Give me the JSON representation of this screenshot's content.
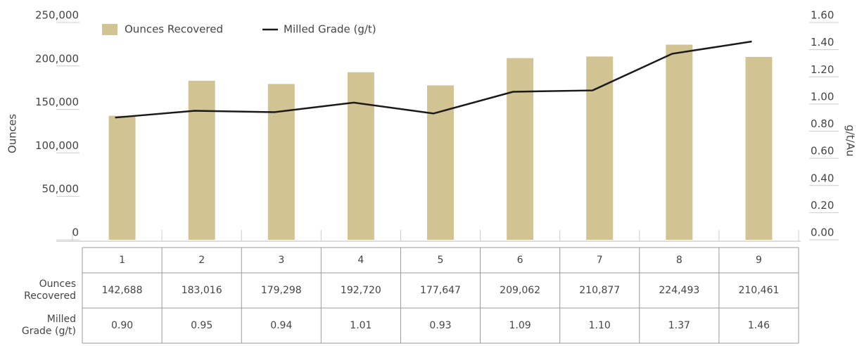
{
  "chart_data": {
    "type": "bar_line",
    "categories": [
      "1",
      "2",
      "3",
      "4",
      "5",
      "6",
      "7",
      "8",
      "9"
    ],
    "series": [
      {
        "name": "Ounces Recovered",
        "type": "bar",
        "color": "#d1c392",
        "axis": "y",
        "values": [
          142688,
          183016,
          179298,
          192720,
          177647,
          209062,
          210877,
          224493,
          210461
        ],
        "value_labels": [
          "142,688",
          "183,016",
          "179,298",
          "192,720",
          "177,647",
          "209,062",
          "210,877",
          "224,493",
          "210,461"
        ]
      },
      {
        "name": "Milled Grade (g/t)",
        "type": "line",
        "color": "#1a1a1a",
        "axis": "y2",
        "values": [
          0.9,
          0.95,
          0.94,
          1.01,
          0.93,
          1.09,
          1.1,
          1.37,
          1.46
        ],
        "value_labels": [
          "0.90",
          "0.95",
          "0.94",
          "1.01",
          "0.93",
          "1.09",
          "1.10",
          "1.37",
          "1.46"
        ]
      }
    ],
    "ylabel": "Ounces",
    "y2label": "g/t/Au",
    "ylim": [
      0,
      250000
    ],
    "yticks": [
      0,
      {
        "value": 50000,
        "label": "50,000"
      },
      {
        "value": 100000,
        "label": "100,000"
      },
      {
        "value": 150000,
        "label": "150,000"
      },
      {
        "value": 200000,
        "label": "200,000"
      },
      {
        "value": 250000,
        "label": "250,000"
      }
    ],
    "y2lim": [
      0,
      1.6
    ],
    "y2ticks": [
      {
        "value": 0,
        "label": "0.00"
      },
      {
        "value": 0.2,
        "label": "0.20"
      },
      {
        "value": 0.4,
        "label": "0.40"
      },
      {
        "value": 0.6,
        "label": "0.60"
      },
      {
        "value": 0.8,
        "label": "0.80"
      },
      {
        "value": 1.0,
        "label": "1.00"
      },
      {
        "value": 1.2,
        "label": "1.20"
      },
      {
        "value": 1.4,
        "label": "1.40"
      },
      {
        "value": 1.6,
        "label": "1.60"
      }
    ],
    "legend": "top-left"
  }
}
